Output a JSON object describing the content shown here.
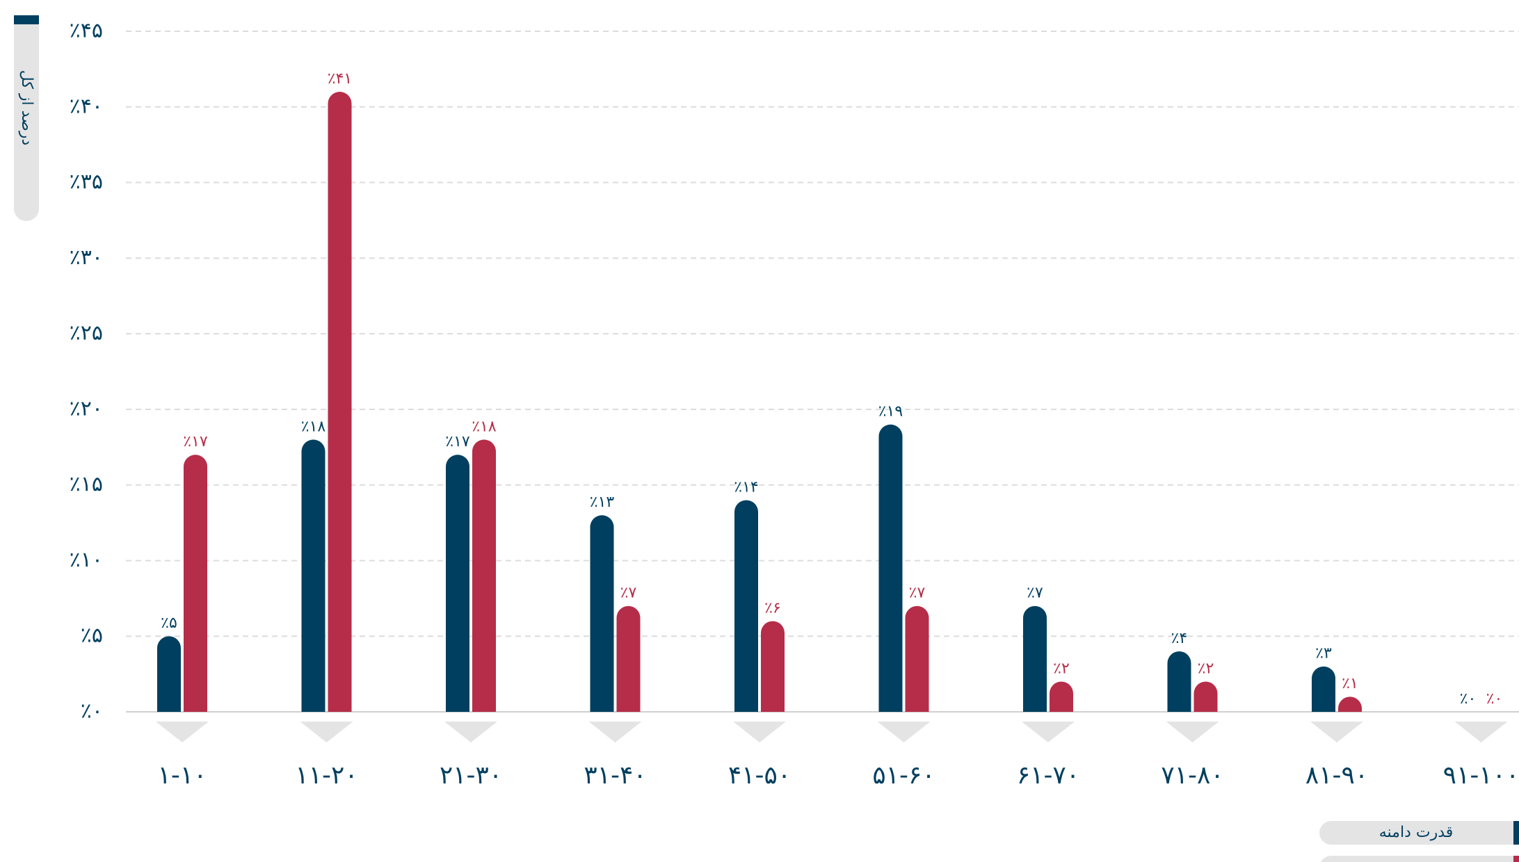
{
  "chart_data": {
    "type": "bar",
    "y_label": "درصد از کل",
    "categories": [
      "۱-۱۰",
      "۱۱-۲۰",
      "۲۱-۳۰",
      "۳۱-۴۰",
      "۴۱-۵۰",
      "۵۱-۶۰",
      "۶۱-۷۰",
      "۷۱-۸۰",
      "۸۱-۹۰",
      "۹۱-۱۰۰"
    ],
    "series": [
      {
        "name": "قدرت دامنه",
        "color": "#003f5f",
        "values": [
          5,
          18,
          17,
          13,
          14,
          19,
          7,
          4,
          3,
          0
        ],
        "value_labels": [
          "٪۵",
          "٪۱۸",
          "٪۱۷",
          "٪۱۳",
          "٪۱۴",
          "٪۱۹",
          "٪۷",
          "٪۴",
          "٪۳",
          "٪۰"
        ]
      },
      {
        "color": "#b52d48",
        "values": [
          17,
          41,
          18,
          7,
          6,
          7,
          2,
          2,
          1,
          0
        ],
        "value_labels": [
          "٪۱۷",
          "٪۴۱",
          "٪۱۸",
          "٪۷",
          "٪۶",
          "٪۷",
          "٪۲",
          "٪۲",
          "٪۱",
          "٪۰"
        ]
      }
    ],
    "ylim": [
      0,
      45
    ],
    "yticks": [
      {
        "value": 0,
        "label": "٪۰"
      },
      {
        "value": 5,
        "label": "٪۵"
      },
      {
        "value": 10,
        "label": "٪۱۰"
      },
      {
        "value": 15,
        "label": "٪۱۵"
      },
      {
        "value": 20,
        "label": "٪۲۰"
      },
      {
        "value": 25,
        "label": "٪۲۵"
      },
      {
        "value": 30,
        "label": "٪۳۰"
      },
      {
        "value": 35,
        "label": "٪۳۵"
      },
      {
        "value": 40,
        "label": "٪۴۰"
      },
      {
        "value": 45,
        "label": "٪۴۵"
      }
    ],
    "grid": true
  }
}
